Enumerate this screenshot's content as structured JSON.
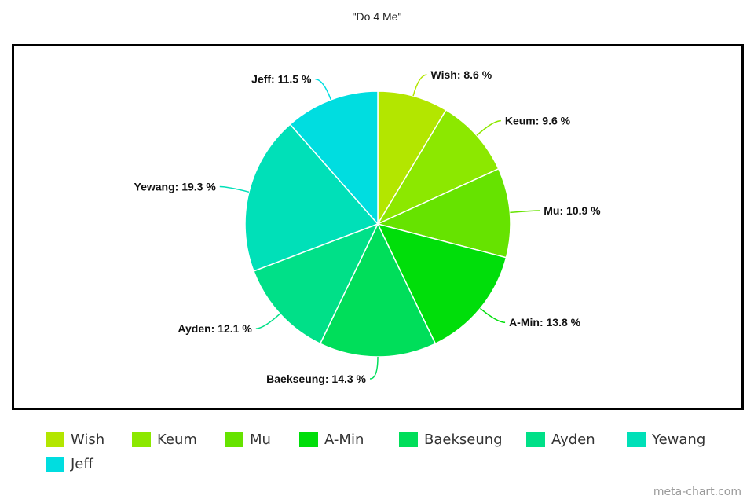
{
  "chart_data": {
    "type": "pie",
    "title": "\"Do 4 Me\"",
    "slices": [
      {
        "name": "Wish",
        "value": 8.6,
        "label": "Wish: 8.6 %",
        "color": "#b3e600"
      },
      {
        "name": "Keum",
        "value": 9.6,
        "label": "Keum: 9.6 %",
        "color": "#8ce800"
      },
      {
        "name": "Mu",
        "value": 10.9,
        "label": "Mu: 10.9 %",
        "color": "#66e300"
      },
      {
        "name": "A-Min",
        "value": 13.8,
        "label": "A-Min: 13.8 %",
        "color": "#00de0a"
      },
      {
        "name": "Baekseung",
        "value": 14.3,
        "label": "Baekseung: 14.3 %",
        "color": "#00de5a"
      },
      {
        "name": "Ayden",
        "value": 12.1,
        "label": "Ayden: 12.1 %",
        "color": "#00e088"
      },
      {
        "name": "Yewang",
        "value": 19.3,
        "label": "Yewang: 19.3 %",
        "color": "#00e0b8"
      },
      {
        "name": "Jeff",
        "value": 11.5,
        "label": "Jeff: 11.5 %",
        "color": "#00dde0"
      }
    ],
    "legend_position": "bottom-left"
  },
  "watermark": "meta-chart.com"
}
